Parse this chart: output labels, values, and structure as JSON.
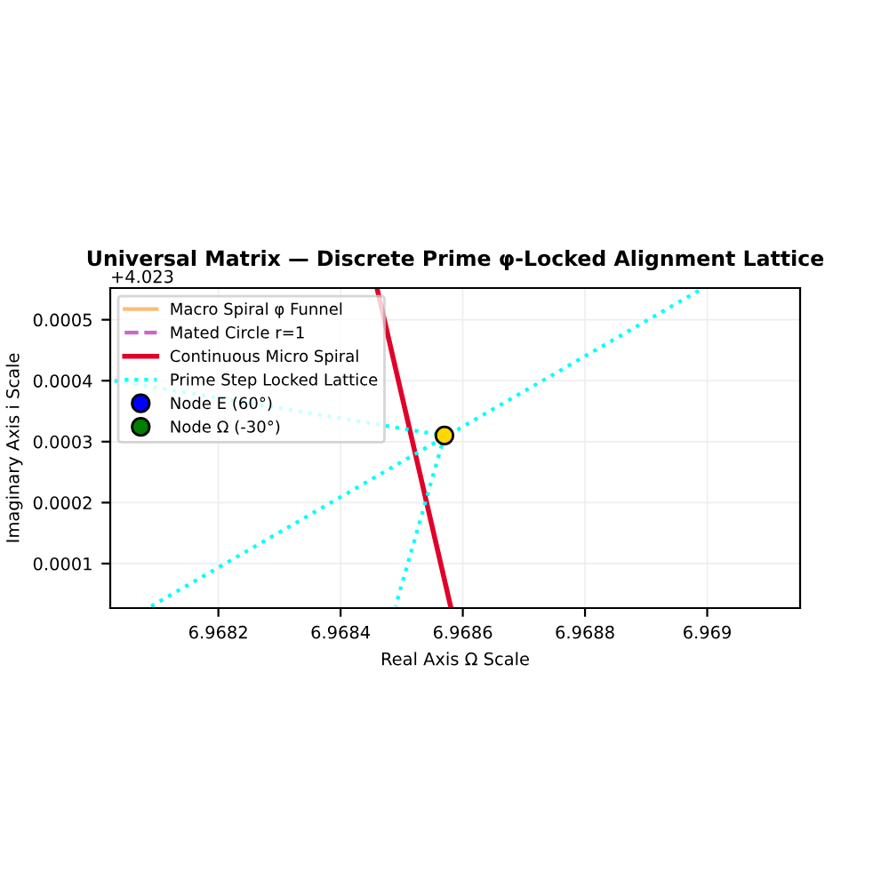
{
  "chart_data": {
    "type": "line",
    "title": "Universal Matrix — Discrete Prime φ-Locked Alignment Lattice",
    "xlabel": "Real Axis Ω Scale",
    "ylabel": "Imaginary Axis i Scale",
    "annotations": [
      "+4.023"
    ],
    "xlim": [
      6.968023,
      6.969152
    ],
    "ylim": [
      2.7e-05,
      0.000552
    ],
    "xticks": [
      6.9682,
      6.9684,
      6.9686,
      6.9688,
      6.969
    ],
    "yticks": [
      0.0001,
      0.0002,
      0.0003,
      0.0004,
      0.0005
    ],
    "grid": true,
    "legend": "top left",
    "series": [
      {
        "name": "Macro Spiral φ Funnel",
        "color": "#ffbb78",
        "line_style": "solid"
      },
      {
        "name": "Mated Circle r=1",
        "color": "#cc66cc",
        "line_style": "dashed"
      },
      {
        "name": "Continuous Micro Spiral",
        "color": "#e0002a",
        "line_style": "solid",
        "x": [
          6.96846,
          6.96858
        ],
        "values": [
          0.00055,
          3e-05
        ]
      },
      {
        "name": "Prime Step Locked Lattice",
        "color": "#00ffff",
        "line_style": "dotted",
        "x": [
          6.96803,
          6.96857,
          null,
          6.96809,
          6.96899,
          null,
          6.96857,
          6.96849
        ],
        "values": [
          0.0004,
          0.00031,
          null,
          3e-05,
          0.00055,
          null,
          0.00031,
          3e-05
        ]
      },
      {
        "name": "Node E (60°)",
        "type": "scatter",
        "color": "#0000ff",
        "marker": "circle"
      },
      {
        "name": "Node Ω (-30°)",
        "type": "scatter",
        "color": "#008000",
        "marker": "circle"
      },
      {
        "type": "scatter",
        "color": "#ffd700",
        "marker": "circle",
        "x": [
          6.96857
        ],
        "values": [
          0.00031
        ]
      }
    ]
  }
}
